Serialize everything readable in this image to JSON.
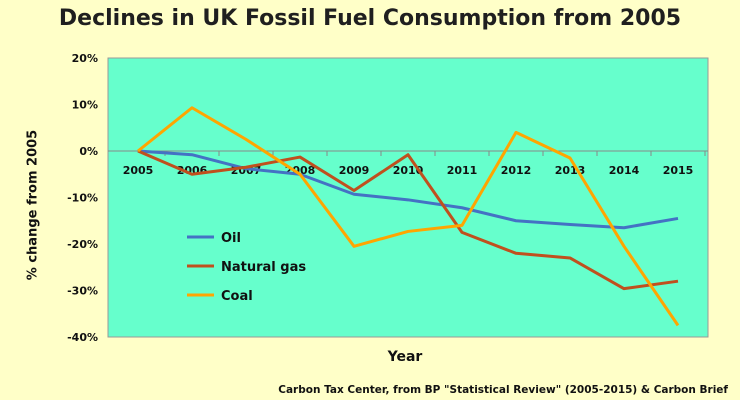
{
  "chart_data": {
    "type": "line",
    "title": "Declines in UK Fossil Fuel Consumption from 2005",
    "xlabel": "Year",
    "ylabel": "% change from 2005",
    "source": "Carbon Tax Center, from BP \"Statistical Review\" (2005-2015)  & Carbon Brief",
    "x": [
      2005,
      2006,
      2007,
      2008,
      2009,
      2010,
      2011,
      2012,
      2013,
      2014,
      2015
    ],
    "ylim": [
      -40,
      20
    ],
    "yticks": [
      20,
      10,
      0,
      -10,
      -20,
      -30,
      -40
    ],
    "ytick_labels": [
      "20%",
      "10%",
      "0%",
      "-10%",
      "-20%",
      "-30%",
      "-40%"
    ],
    "legend_position": "left-center",
    "series": [
      {
        "name": "Oil",
        "color": "#4472c4",
        "values": [
          0,
          -0.8,
          -3.8,
          -5,
          -9.3,
          -10.5,
          -12.2,
          -15,
          -15.8,
          -16.5,
          -14.5
        ]
      },
      {
        "name": "Natural gas",
        "color": "#c0501e",
        "values": [
          0,
          -5,
          -3.5,
          -1.3,
          -8.5,
          -0.8,
          -17.5,
          -22,
          -23,
          -29.6,
          -28
        ]
      },
      {
        "name": "Coal",
        "color": "#ffa500",
        "values": [
          0,
          9.3,
          2.5,
          -5,
          -20.5,
          -17.3,
          -16,
          4,
          -1.5,
          -20.5,
          -37.5
        ]
      }
    ]
  }
}
